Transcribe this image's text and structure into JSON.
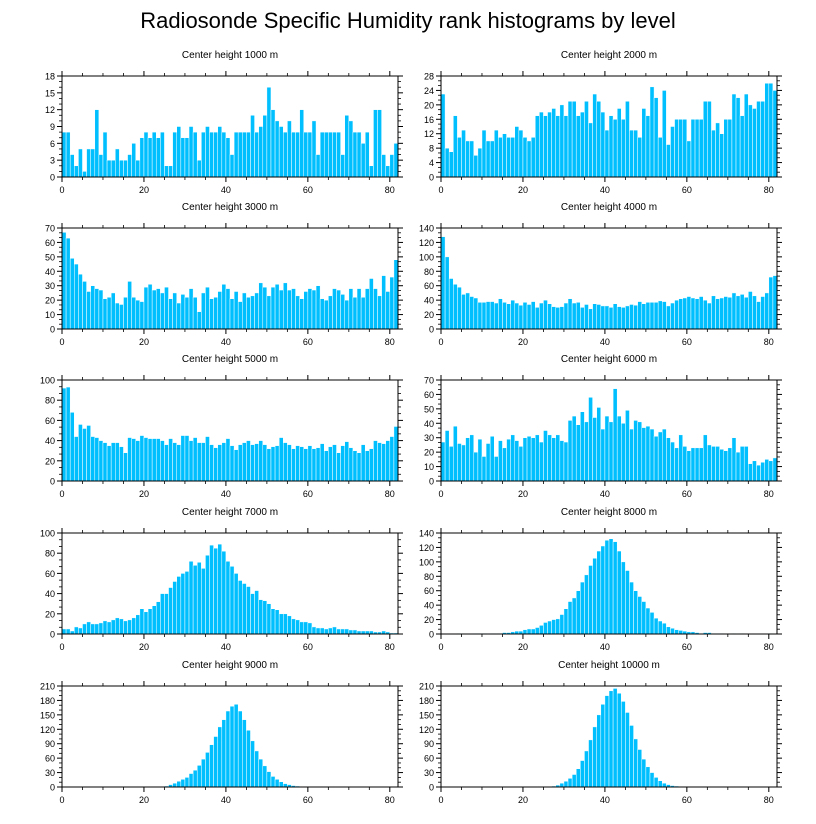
{
  "figure_title": "Radiosonde Specific Humidity rank histograms by level",
  "bar_color": "#00BFFF",
  "bar_edge_color": "#ffffff",
  "chart_data": [
    {
      "type": "bar",
      "title": "Center height 1000 m",
      "xlabel": "",
      "ylabel": "",
      "xlim": [
        0,
        82
      ],
      "ylim": [
        0,
        18
      ],
      "xticks": [
        0,
        20,
        40,
        60,
        80
      ],
      "yticks": [
        0,
        3,
        6,
        9,
        12,
        15,
        18
      ],
      "x_start": 0,
      "values": [
        8,
        8,
        4,
        2,
        5,
        1,
        5,
        5,
        12,
        4,
        8,
        3,
        3,
        5,
        3,
        3,
        4,
        6,
        3,
        7,
        8,
        7,
        8,
        7,
        8,
        2,
        2,
        8,
        9,
        7,
        7,
        9,
        8,
        3,
        8,
        9,
        8,
        8,
        9,
        8,
        7,
        4,
        8,
        8,
        8,
        8,
        11,
        8,
        9,
        11,
        16,
        12,
        10,
        9,
        8,
        10,
        8,
        8,
        12,
        8,
        8,
        10,
        4,
        8,
        8,
        8,
        8,
        8,
        4,
        11,
        10,
        8,
        8,
        6,
        8,
        2,
        12,
        12,
        4,
        2,
        4,
        6
      ]
    },
    {
      "type": "bar",
      "title": "Center height 2000 m",
      "xlabel": "",
      "ylabel": "",
      "xlim": [
        0,
        82
      ],
      "ylim": [
        0,
        28
      ],
      "xticks": [
        0,
        20,
        40,
        60,
        80
      ],
      "yticks": [
        0,
        4,
        8,
        12,
        16,
        20,
        24,
        28
      ],
      "x_start": 0,
      "values": [
        23,
        8,
        7,
        17,
        11,
        13,
        10,
        10,
        6,
        8,
        13,
        10,
        10,
        13,
        11,
        12,
        11,
        11,
        14,
        13,
        11,
        10,
        11,
        17,
        18,
        17,
        18,
        19,
        17,
        20,
        17,
        21,
        21,
        17,
        18,
        21,
        15,
        23,
        21,
        18,
        13,
        17,
        16,
        19,
        16,
        21,
        13,
        13,
        11,
        19,
        17,
        25,
        22,
        11,
        24,
        9,
        14,
        16,
        16,
        16,
        10,
        16,
        16,
        16,
        21,
        21,
        13,
        15,
        12,
        16,
        16,
        23,
        22,
        17,
        23,
        20,
        19,
        21,
        21,
        26,
        26,
        24
      ]
    },
    {
      "type": "bar",
      "title": "Center height 3000 m",
      "xlabel": "",
      "ylabel": "",
      "xlim": [
        0,
        82
      ],
      "ylim": [
        0,
        70
      ],
      "xticks": [
        0,
        20,
        40,
        60,
        80
      ],
      "yticks": [
        0,
        10,
        20,
        30,
        40,
        50,
        60,
        70
      ],
      "x_start": 0,
      "values": [
        67,
        63,
        49,
        45,
        38,
        33,
        26,
        30,
        28,
        27,
        21,
        22,
        25,
        18,
        17,
        22,
        33,
        22,
        20,
        19,
        29,
        31,
        27,
        28,
        25,
        29,
        21,
        25,
        18,
        24,
        22,
        28,
        22,
        12,
        25,
        29,
        21,
        22,
        26,
        31,
        28,
        21,
        26,
        19,
        25,
        22,
        23,
        25,
        32,
        29,
        23,
        29,
        31,
        27,
        32,
        27,
        28,
        23,
        21,
        26,
        28,
        27,
        30,
        21,
        20,
        23,
        28,
        27,
        24,
        20,
        28,
        22,
        28,
        22,
        28,
        35,
        28,
        23,
        37,
        26,
        36,
        48
      ]
    },
    {
      "type": "bar",
      "title": "Center height 4000 m",
      "xlabel": "",
      "ylabel": "",
      "xlim": [
        0,
        82
      ],
      "ylim": [
        0,
        140
      ],
      "xticks": [
        0,
        20,
        40,
        60,
        80
      ],
      "yticks": [
        0,
        20,
        40,
        60,
        80,
        100,
        120,
        140
      ],
      "x_start": 0,
      "values": [
        128,
        100,
        70,
        62,
        58,
        48,
        50,
        45,
        43,
        37,
        37,
        38,
        38,
        36,
        42,
        37,
        35,
        40,
        36,
        33,
        37,
        34,
        38,
        30,
        36,
        40,
        35,
        31,
        30,
        31,
        36,
        42,
        36,
        37,
        30,
        34,
        28,
        35,
        34,
        32,
        32,
        30,
        35,
        31,
        30,
        32,
        34,
        33,
        38,
        35,
        37,
        37,
        37,
        39,
        38,
        32,
        36,
        40,
        42,
        43,
        45,
        43,
        42,
        45,
        40,
        36,
        46,
        42,
        43,
        45,
        44,
        50,
        46,
        48,
        44,
        52,
        46,
        38,
        45,
        50,
        72,
        74
      ]
    },
    {
      "type": "bar",
      "title": "Center height 5000 m",
      "xlabel": "",
      "ylabel": "",
      "xlim": [
        0,
        82
      ],
      "ylim": [
        0,
        100
      ],
      "xticks": [
        0,
        20,
        40,
        60,
        80
      ],
      "yticks": [
        0,
        20,
        40,
        60,
        80,
        100
      ],
      "x_start": 0,
      "values": [
        92,
        93,
        68,
        44,
        56,
        52,
        55,
        44,
        43,
        40,
        38,
        35,
        38,
        38,
        34,
        28,
        43,
        42,
        40,
        45,
        43,
        42,
        42,
        42,
        40,
        36,
        42,
        38,
        36,
        45,
        45,
        40,
        43,
        38,
        38,
        44,
        36,
        33,
        36,
        38,
        42,
        35,
        31,
        36,
        38,
        40,
        36,
        37,
        40,
        36,
        32,
        34,
        35,
        43,
        38,
        36,
        32,
        35,
        34,
        32,
        35,
        32,
        33,
        37,
        30,
        34,
        36,
        28,
        35,
        39,
        33,
        30,
        28,
        36,
        30,
        32,
        40,
        38,
        37,
        40,
        44,
        54
      ]
    },
    {
      "type": "bar",
      "title": "Center height 6000 m",
      "xlabel": "",
      "ylabel": "",
      "xlim": [
        0,
        82
      ],
      "ylim": [
        0,
        70
      ],
      "xticks": [
        0,
        20,
        40,
        60,
        80
      ],
      "yticks": [
        0,
        10,
        20,
        30,
        40,
        50,
        60,
        70
      ],
      "x_start": 0,
      "values": [
        27,
        35,
        24,
        38,
        26,
        25,
        30,
        32,
        20,
        29,
        17,
        26,
        31,
        17,
        28,
        23,
        29,
        32,
        28,
        24,
        30,
        31,
        30,
        32,
        27,
        35,
        32,
        30,
        32,
        28,
        27,
        42,
        45,
        39,
        48,
        41,
        58,
        44,
        51,
        36,
        45,
        41,
        64,
        45,
        40,
        49,
        36,
        42,
        41,
        37,
        38,
        36,
        31,
        34,
        36,
        30,
        27,
        23,
        32,
        24,
        21,
        23,
        23,
        23,
        32,
        25,
        24,
        24,
        22,
        21,
        23,
        30,
        20,
        24,
        24,
        12,
        14,
        11,
        13,
        15,
        14,
        16
      ]
    },
    {
      "type": "bar",
      "title": "Center height 7000 m",
      "xlabel": "",
      "ylabel": "",
      "xlim": [
        0,
        82
      ],
      "ylim": [
        0,
        100
      ],
      "xticks": [
        0,
        20,
        40,
        60,
        80
      ],
      "yticks": [
        0,
        20,
        40,
        60,
        80,
        100
      ],
      "x_start": 0,
      "values": [
        5,
        5,
        3,
        7,
        6,
        10,
        12,
        10,
        10,
        11,
        13,
        12,
        14,
        16,
        15,
        13,
        14,
        16,
        19,
        25,
        22,
        25,
        28,
        32,
        40,
        40,
        46,
        52,
        57,
        60,
        62,
        72,
        68,
        71,
        65,
        78,
        88,
        85,
        89,
        82,
        72,
        67,
        60,
        53,
        50,
        47,
        40,
        43,
        34,
        33,
        30,
        25,
        24,
        20,
        20,
        18,
        15,
        14,
        12,
        12,
        11,
        7,
        6,
        6,
        5,
        6,
        7,
        5,
        5,
        5,
        4,
        4,
        3,
        3,
        3,
        3,
        2,
        2,
        3,
        2,
        1,
        1
      ]
    },
    {
      "type": "bar",
      "title": "Center height 8000 m",
      "xlabel": "",
      "ylabel": "",
      "xlim": [
        0,
        82
      ],
      "ylim": [
        0,
        140
      ],
      "xticks": [
        0,
        20,
        40,
        60,
        80
      ],
      "yticks": [
        0,
        20,
        40,
        60,
        80,
        100,
        120,
        140
      ],
      "x_start": 0,
      "values": [
        0,
        0,
        0,
        0,
        1,
        0,
        0,
        0,
        1,
        1,
        1,
        0,
        1,
        1,
        1,
        2,
        2,
        3,
        4,
        4,
        6,
        7,
        7,
        9,
        12,
        16,
        18,
        20,
        21,
        27,
        35,
        45,
        50,
        60,
        72,
        82,
        95,
        105,
        115,
        122,
        130,
        132,
        128,
        115,
        100,
        88,
        72,
        60,
        52,
        45,
        36,
        30,
        22,
        18,
        15,
        10,
        8,
        6,
        5,
        4,
        3,
        3,
        2,
        1,
        2,
        2,
        1,
        1,
        1,
        0,
        0,
        1,
        0,
        1,
        0,
        0,
        0,
        0,
        0,
        0,
        1,
        0
      ]
    },
    {
      "type": "bar",
      "title": "Center height 9000 m",
      "xlabel": "",
      "ylabel": "",
      "xlim": [
        0,
        82
      ],
      "ylim": [
        0,
        210
      ],
      "xticks": [
        0,
        20,
        40,
        60,
        80
      ],
      "yticks": [
        0,
        30,
        60,
        90,
        120,
        150,
        180,
        210
      ],
      "x_start": 0,
      "values": [
        0,
        0,
        0,
        0,
        0,
        0,
        0,
        0,
        0,
        0,
        0,
        0,
        0,
        0,
        0,
        0,
        0,
        0,
        0,
        0,
        0,
        0,
        0,
        1,
        1,
        2,
        5,
        8,
        12,
        16,
        20,
        28,
        35,
        45,
        58,
        72,
        88,
        105,
        125,
        140,
        158,
        168,
        172,
        158,
        140,
        118,
        96,
        75,
        58,
        44,
        32,
        22,
        16,
        11,
        7,
        5,
        3,
        2,
        1,
        1,
        1,
        0,
        0,
        0,
        0,
        0,
        0,
        0,
        0,
        0,
        0,
        0,
        0,
        0,
        0,
        0,
        0,
        0,
        0,
        0,
        0,
        0
      ]
    },
    {
      "type": "bar",
      "title": "Center height 10000 m",
      "xlabel": "",
      "ylabel": "",
      "xlim": [
        0,
        82
      ],
      "ylim": [
        0,
        210
      ],
      "xticks": [
        0,
        20,
        40,
        60,
        80
      ],
      "yticks": [
        0,
        30,
        60,
        90,
        120,
        150,
        180,
        210
      ],
      "x_start": 0,
      "values": [
        0,
        0,
        0,
        0,
        0,
        0,
        0,
        0,
        0,
        0,
        0,
        0,
        0,
        0,
        0,
        0,
        0,
        0,
        0,
        0,
        0,
        0,
        0,
        0,
        0,
        0,
        1,
        2,
        4,
        8,
        12,
        18,
        26,
        38,
        55,
        75,
        98,
        125,
        150,
        172,
        190,
        200,
        205,
        195,
        178,
        155,
        128,
        100,
        78,
        58,
        42,
        30,
        20,
        13,
        8,
        5,
        3,
        2,
        1,
        1,
        0,
        0,
        0,
        0,
        0,
        0,
        0,
        0,
        0,
        0,
        0,
        0,
        0,
        0,
        0,
        0,
        0,
        0,
        0,
        0,
        0,
        0
      ]
    }
  ]
}
